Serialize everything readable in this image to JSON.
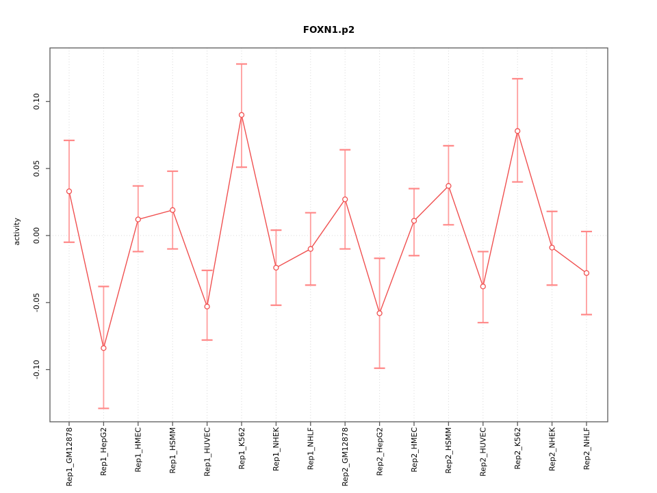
{
  "figure": {
    "title": "FOXN1.p2",
    "ylabel": "activity"
  },
  "chart_data": {
    "type": "line",
    "title": "FOXN1.p2",
    "xlabel": "",
    "ylabel": "activity",
    "categories": [
      "Rep1_GM12878",
      "Rep1_HepG2",
      "Rep1_HMEC",
      "Rep1_HSMM",
      "Rep1_HUVEC",
      "Rep1_K562",
      "Rep1_NHEK",
      "Rep1_NHLF",
      "Rep2_GM12878",
      "Rep2_HepG2",
      "Rep2_HMEC",
      "Rep2_HSMM",
      "Rep2_HUVEC",
      "Rep2_K562",
      "Rep2_NHEK",
      "Rep2_NHLF"
    ],
    "series": [
      {
        "name": "activity",
        "values": [
          0.033,
          -0.084,
          0.012,
          0.019,
          -0.053,
          0.09,
          -0.024,
          -0.01,
          0.027,
          -0.058,
          0.011,
          0.037,
          -0.038,
          0.078,
          -0.009,
          -0.028
        ],
        "error_low": [
          -0.005,
          -0.129,
          -0.012,
          -0.01,
          -0.078,
          0.051,
          -0.052,
          -0.037,
          -0.01,
          -0.099,
          -0.015,
          0.008,
          -0.065,
          0.04,
          -0.037,
          -0.059
        ],
        "error_high": [
          0.071,
          -0.038,
          0.037,
          0.048,
          -0.026,
          0.128,
          0.004,
          0.017,
          0.064,
          -0.017,
          0.035,
          0.067,
          -0.012,
          0.117,
          0.018,
          0.003
        ]
      }
    ],
    "yticks": [
      -0.1,
      -0.05,
      0.0,
      0.05,
      0.1
    ],
    "ylim": [
      -0.139,
      0.14
    ],
    "grid": {
      "vertical_dotted": true,
      "zero_line_dotted": true,
      "horizontal_gridlines": false
    },
    "legend": "none",
    "marker": "open-circle",
    "colors": {
      "series_line": "#f05050",
      "error_bar": "#ff9d9d",
      "error_cap": "#ff8787",
      "grid": "#d8d8d8",
      "axis": "#595959",
      "text": "#000000",
      "background": "#ffffff"
    }
  }
}
